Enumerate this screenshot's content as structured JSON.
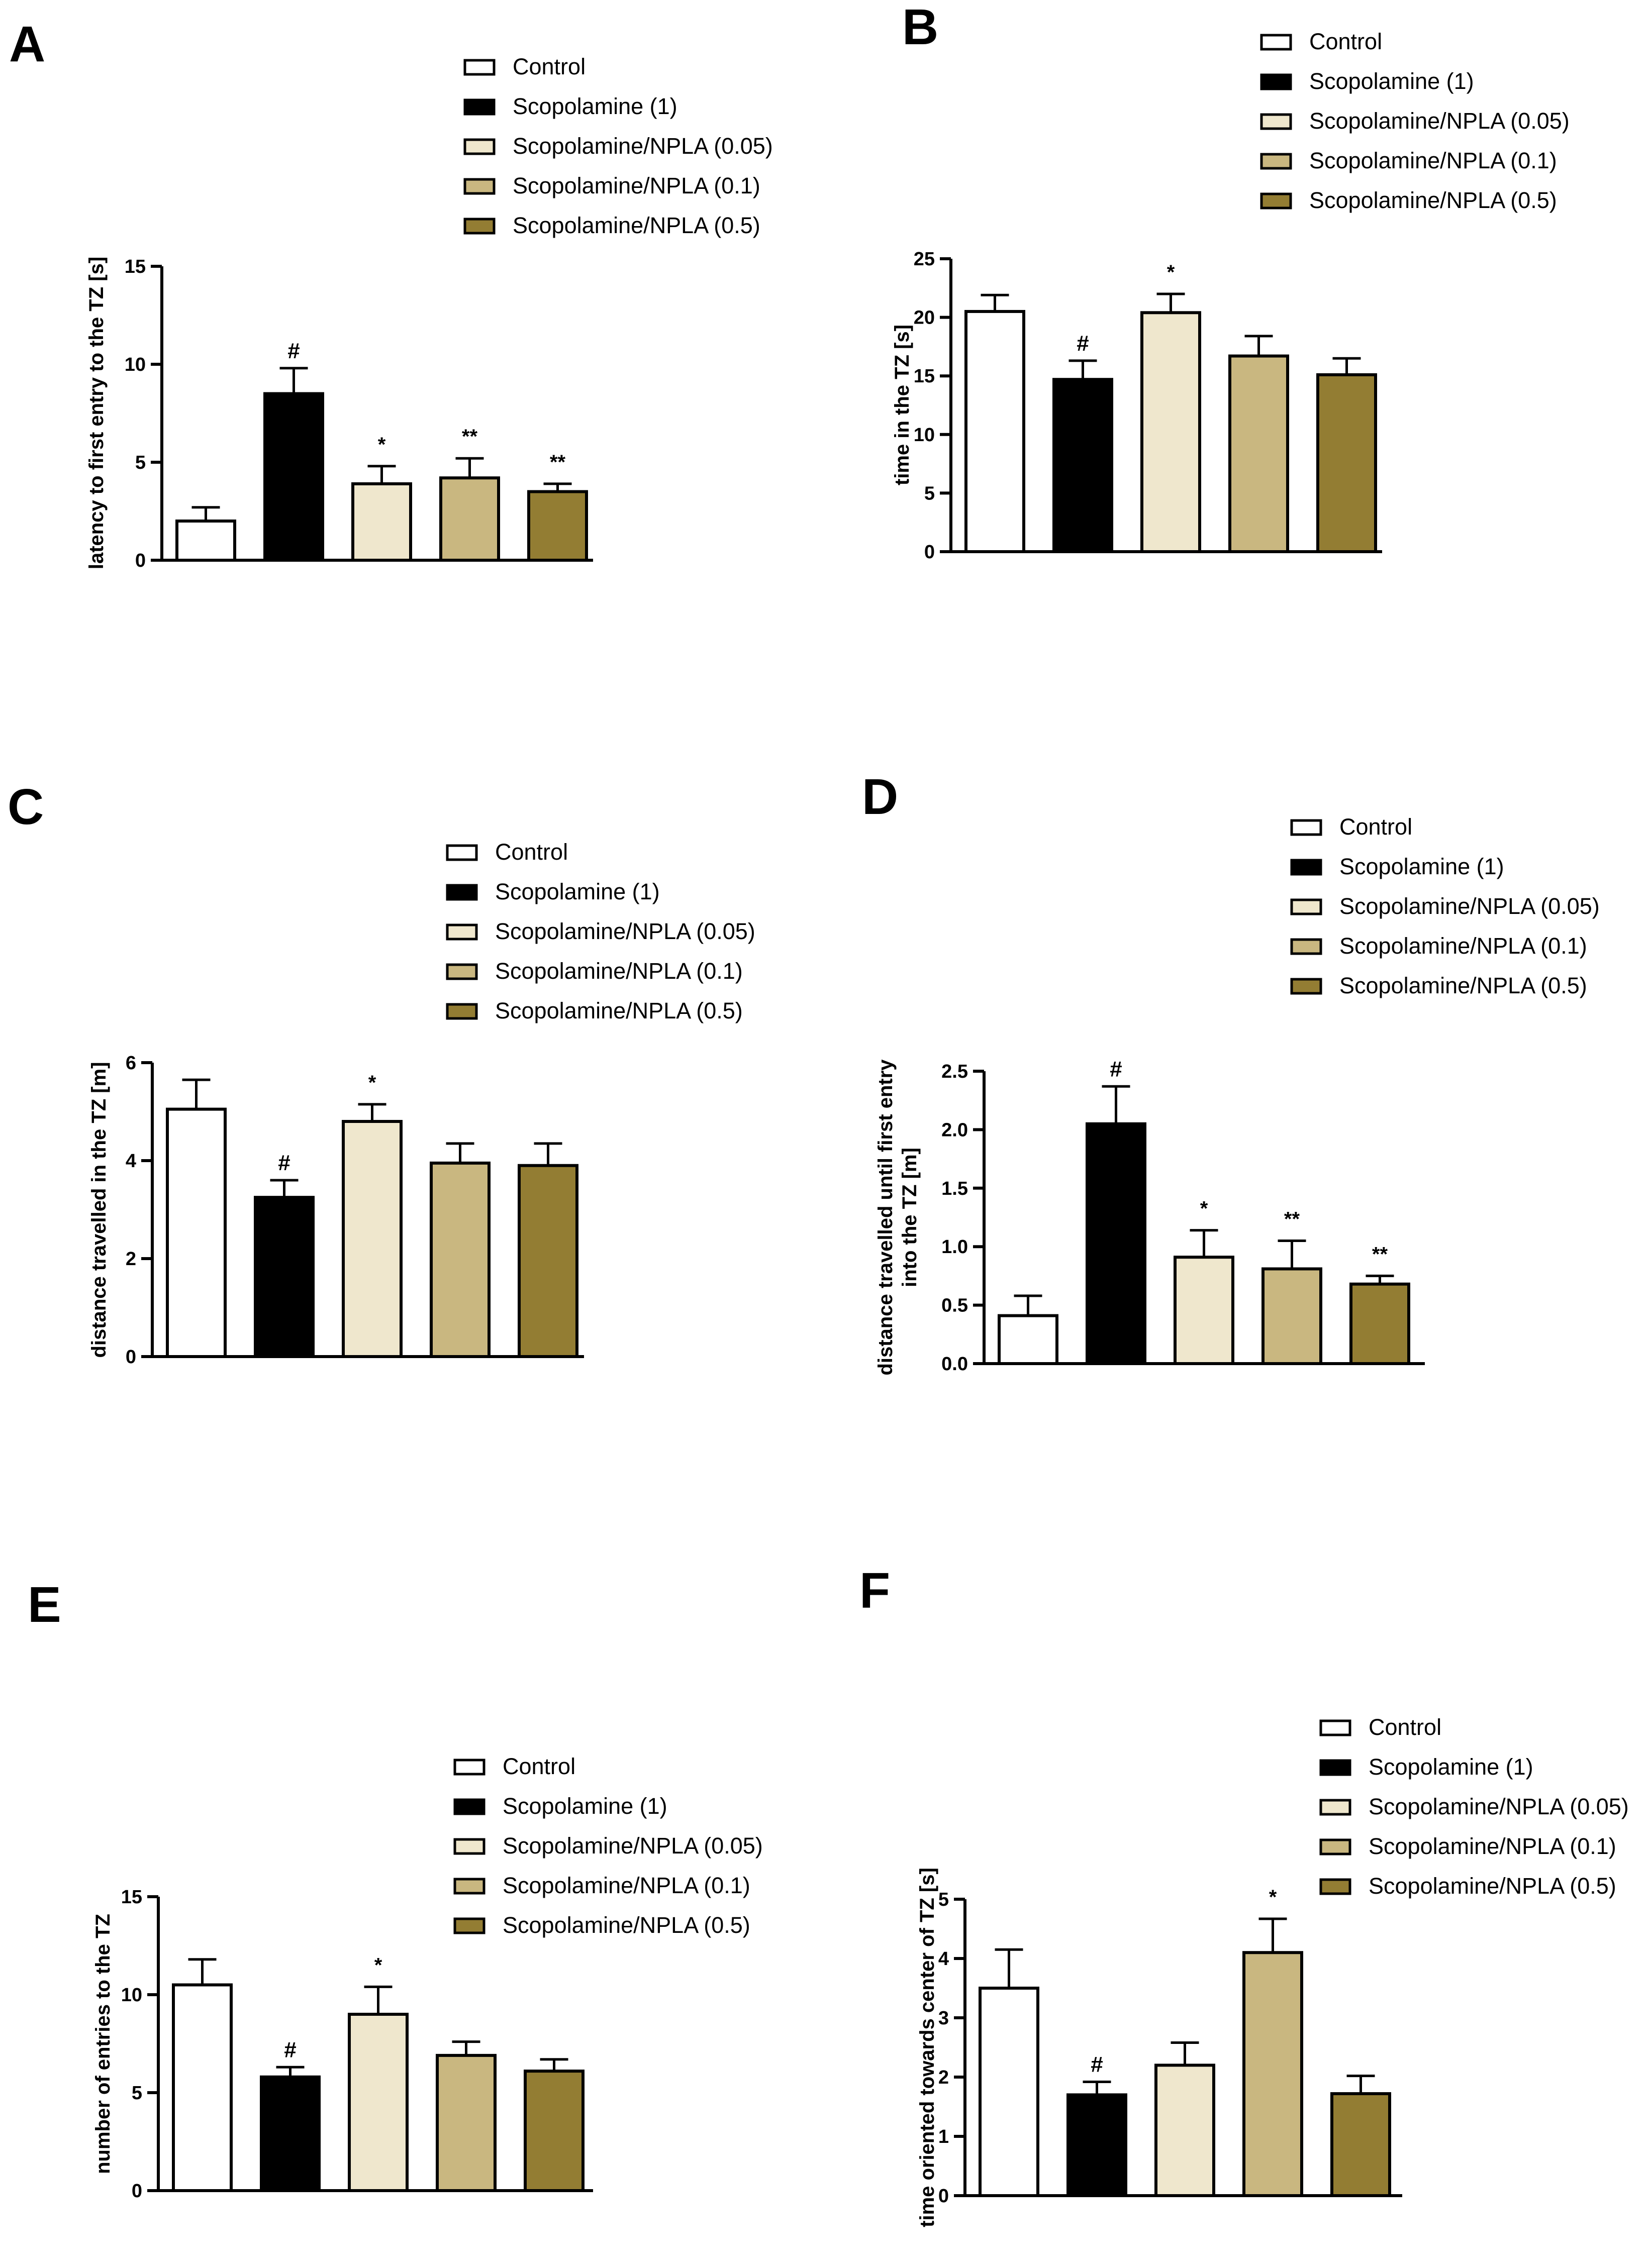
{
  "colors": {
    "control": "#ffffff",
    "scopolamine": "#000000",
    "npla_005": "#efe7cd",
    "npla_01": "#c9b780",
    "npla_05": "#937d33"
  },
  "legend": {
    "items": [
      {
        "label": "Control",
        "color": "#ffffff"
      },
      {
        "label": "Scopolamine (1)",
        "color": "#000000"
      },
      {
        "label": "Scopolamine/NPLA (0.05)",
        "color": "#efe7cd"
      },
      {
        "label": "Scopolamine/NPLA (0.1)",
        "color": "#c9b780"
      },
      {
        "label": "Scopolamine/NPLA (0.5)",
        "color": "#937d33"
      }
    ]
  },
  "chart_data": [
    {
      "panel": "A",
      "type": "bar",
      "categories": [
        "Control",
        "Scopolamine (1)",
        "Scopolamine/NPLA (0.05)",
        "Scopolamine/NPLA (0.1)",
        "Scopolamine/NPLA (0.5)"
      ],
      "values": [
        2.0,
        8.5,
        3.9,
        4.2,
        3.5
      ],
      "errors": [
        0.7,
        1.3,
        0.9,
        1.0,
        0.4
      ],
      "significance": [
        "",
        "#",
        "*",
        "**",
        "**"
      ],
      "ylabel": "latency to first entry to the TZ [s]",
      "ylim": [
        0,
        15
      ],
      "yticks": [
        "0",
        "5",
        "10",
        "15"
      ]
    },
    {
      "panel": "B",
      "type": "bar",
      "categories": [
        "Control",
        "Scopolamine (1)",
        "Scopolamine/NPLA (0.05)",
        "Scopolamine/NPLA (0.1)",
        "Scopolamine/NPLA (0.5)"
      ],
      "values": [
        20.5,
        14.7,
        20.4,
        16.7,
        15.1
      ],
      "errors": [
        1.4,
        1.6,
        1.6,
        1.7,
        1.4
      ],
      "significance": [
        "",
        "#",
        "*",
        "",
        ""
      ],
      "ylabel": "time in the TZ [s]",
      "ylim": [
        0,
        25
      ],
      "yticks": [
        "0",
        "5",
        "10",
        "15",
        "20",
        "25"
      ]
    },
    {
      "panel": "C",
      "type": "bar",
      "categories": [
        "Control",
        "Scopolamine (1)",
        "Scopolamine/NPLA (0.05)",
        "Scopolamine/NPLA (0.1)",
        "Scopolamine/NPLA (0.5)"
      ],
      "values": [
        5.05,
        3.25,
        4.8,
        3.95,
        3.9
      ],
      "errors": [
        0.6,
        0.35,
        0.35,
        0.4,
        0.45
      ],
      "significance": [
        "",
        "#",
        "*",
        "",
        ""
      ],
      "ylabel": "distance travelled in the TZ [m]",
      "ylim": [
        0,
        6
      ],
      "yticks": [
        "0",
        "2",
        "4",
        "6"
      ]
    },
    {
      "panel": "D",
      "type": "bar",
      "categories": [
        "Control",
        "Scopolamine (1)",
        "Scopolamine/NPLA (0.05)",
        "Scopolamine/NPLA (0.1)",
        "Scopolamine/NPLA (0.5)"
      ],
      "values": [
        0.41,
        2.05,
        0.91,
        0.81,
        0.68
      ],
      "errors": [
        0.17,
        0.32,
        0.23,
        0.24,
        0.07
      ],
      "significance": [
        "",
        "#",
        "*",
        "**",
        "**"
      ],
      "ylabel_lines": [
        "distance travelled until first entry",
        "into the TZ [m]"
      ],
      "ylim": [
        0,
        2.5
      ],
      "yticks": [
        "0.0",
        "0.5",
        "1.0",
        "1.5",
        "2.0",
        "2.5"
      ]
    },
    {
      "panel": "E",
      "type": "bar",
      "categories": [
        "Control",
        "Scopolamine (1)",
        "Scopolamine/NPLA (0.05)",
        "Scopolamine/NPLA (0.1)",
        "Scopolamine/NPLA (0.5)"
      ],
      "values": [
        10.5,
        5.8,
        9.0,
        6.9,
        6.1
      ],
      "errors": [
        1.3,
        0.5,
        1.4,
        0.7,
        0.6
      ],
      "significance": [
        "",
        "#",
        "*",
        "",
        ""
      ],
      "ylabel": "number of entries to the TZ",
      "ylim": [
        0,
        15
      ],
      "yticks": [
        "0",
        "5",
        "10",
        "15"
      ]
    },
    {
      "panel": "F",
      "type": "bar",
      "categories": [
        "Control",
        "Scopolamine (1)",
        "Scopolamine/NPLA (0.05)",
        "Scopolamine/NPLA (0.1)",
        "Scopolamine/NPLA (0.5)"
      ],
      "values": [
        3.5,
        1.7,
        2.2,
        4.1,
        1.72
      ],
      "errors": [
        0.65,
        0.22,
        0.38,
        0.57,
        0.3
      ],
      "significance": [
        "",
        "#",
        "",
        "*",
        ""
      ],
      "ylabel": "time oriented towards center of TZ [s]",
      "ylim": [
        0,
        5
      ],
      "yticks": [
        "0",
        "1",
        "2",
        "3",
        "4",
        "5"
      ]
    }
  ]
}
